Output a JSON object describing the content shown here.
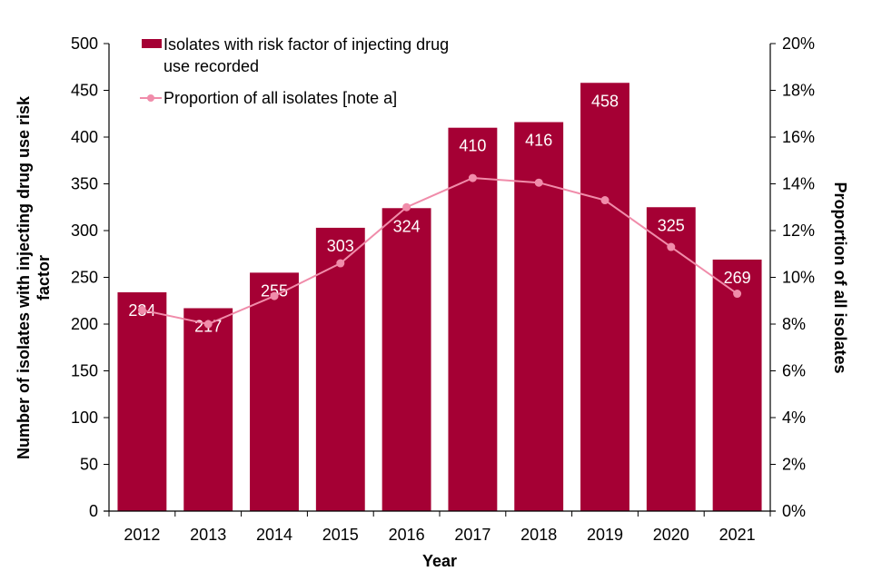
{
  "chart_data": {
    "type": "bar",
    "categories": [
      "2012",
      "2013",
      "2014",
      "2015",
      "2016",
      "2017",
      "2018",
      "2019",
      "2020",
      "2021"
    ],
    "series": [
      {
        "name": "Isolates with risk factor of injecting drug use recorded",
        "kind": "bar",
        "axis": "left",
        "color": "#A50034",
        "values": [
          234,
          217,
          255,
          303,
          324,
          410,
          416,
          458,
          325,
          269
        ],
        "data_labels": [
          "234",
          "217",
          "255",
          "303",
          "324",
          "410",
          "416",
          "458",
          "325",
          "269"
        ]
      },
      {
        "name": "Proportion of all isolates [note a]",
        "kind": "line",
        "axis": "right",
        "color": "#F08CAA",
        "values": [
          8.6,
          8.0,
          9.2,
          10.6,
          13.0,
          14.25,
          14.05,
          13.3,
          11.3,
          9.3
        ],
        "unit": "%"
      }
    ],
    "legend": {
      "placement": "top-left",
      "entries": [
        {
          "line1": "Isolates with risk factor of injecting drug",
          "line2": "use recorded"
        },
        {
          "line1": "Proportion of all isolates [note a]"
        }
      ]
    },
    "xlabel": "Year",
    "ylabel": "Number of isolates with injecting drug use risk factor",
    "ylabel_lines": [
      "Number of isolates with injecting drug use risk",
      "factor"
    ],
    "y2label": "Proportion of all isolates",
    "ylim": [
      0,
      500
    ],
    "yticks": [
      "0",
      "50",
      "100",
      "150",
      "200",
      "250",
      "300",
      "350",
      "400",
      "450",
      "500"
    ],
    "y2lim": [
      0,
      20
    ],
    "y2ticks": [
      "0%",
      "2%",
      "4%",
      "6%",
      "8%",
      "10%",
      "12%",
      "14%",
      "16%",
      "18%",
      "20%"
    ],
    "grid": false
  }
}
